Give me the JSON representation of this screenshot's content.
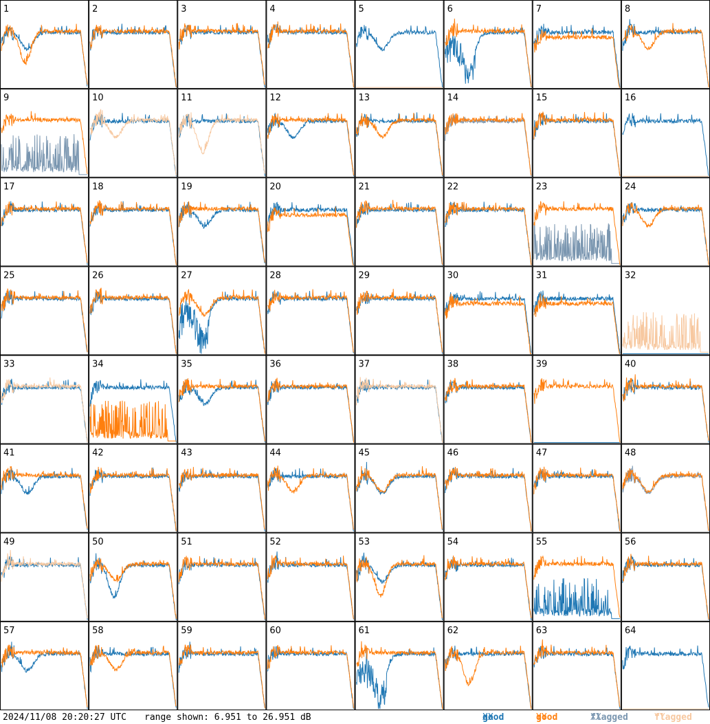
{
  "footer": {
    "timestamp": "2024/11/08 20:20:27 UTC",
    "range_text": "range shown: 6.951 to 26.951 dB",
    "legend": [
      {
        "word": "good",
        "pol": "XX",
        "color": "#1f77b4"
      },
      {
        "word": "good",
        "pol": "YY",
        "color": "#ff7f0e"
      },
      {
        "word": "flagged",
        "pol": "XX",
        "color": "#7a96b0"
      },
      {
        "word": "flagged",
        "pol": "YY",
        "color": "#f7c8a0"
      }
    ]
  },
  "chart_data": {
    "type": "line",
    "title": "",
    "xlabel": "",
    "ylabel": "",
    "ylim": [
      6.951,
      26.951
    ],
    "rows": 8,
    "cols": 8,
    "colors": {
      "good_xx": "#1f77b4",
      "good_yy": "#ff7f0e",
      "flagged_xx": "#7a96b0",
      "flagged_yy": "#f7c8a0"
    },
    "panels": [
      {
        "label": "1",
        "xx": "dip",
        "yy": "deepdip",
        "xf": false,
        "yf": false
      },
      {
        "label": "2",
        "xx": "flat",
        "yy": "flat",
        "xf": false,
        "yf": false
      },
      {
        "label": "3",
        "xx": "flat",
        "yy": "flat",
        "xf": false,
        "yf": false
      },
      {
        "label": "4",
        "xx": "flat",
        "yy": "flat",
        "xf": false,
        "yf": false
      },
      {
        "label": "5",
        "xx": "dip",
        "yy": "dead",
        "xf": false,
        "yf": true
      },
      {
        "label": "6",
        "xx": "noisydip",
        "yy": "flat",
        "xf": false,
        "yf": false
      },
      {
        "label": "7",
        "xx": "flat",
        "yy": "low",
        "xf": false,
        "yf": false
      },
      {
        "label": "8",
        "xx": "flat",
        "yy": "dip",
        "xf": false,
        "yf": false
      },
      {
        "label": "9",
        "xx": "spiky",
        "yy": "flat",
        "xf": true,
        "yf": false
      },
      {
        "label": "10",
        "xx": "flat",
        "yy": "dip",
        "xf": false,
        "yf": true
      },
      {
        "label": "11",
        "xx": "flat",
        "yy": "deepdip",
        "xf": false,
        "yf": true
      },
      {
        "label": "12",
        "xx": "dip",
        "yy": "flat",
        "xf": false,
        "yf": false
      },
      {
        "label": "13",
        "xx": "flat",
        "yy": "dip",
        "xf": false,
        "yf": false
      },
      {
        "label": "14",
        "xx": "flat",
        "yy": "flat",
        "xf": true,
        "yf": false
      },
      {
        "label": "15",
        "xx": "flat",
        "yy": "flat",
        "xf": false,
        "yf": false
      },
      {
        "label": "16",
        "xx": "flat",
        "yy": "dead",
        "xf": false,
        "yf": true
      },
      {
        "label": "17",
        "xx": "flat",
        "yy": "flat",
        "xf": false,
        "yf": false
      },
      {
        "label": "18",
        "xx": "flat",
        "yy": "flat",
        "xf": false,
        "yf": false
      },
      {
        "label": "19",
        "xx": "dip",
        "yy": "flat",
        "xf": false,
        "yf": false
      },
      {
        "label": "20",
        "xx": "flat",
        "yy": "low",
        "xf": false,
        "yf": false
      },
      {
        "label": "21",
        "xx": "flat",
        "yy": "flat",
        "xf": false,
        "yf": false
      },
      {
        "label": "22",
        "xx": "flat",
        "yy": "flat",
        "xf": false,
        "yf": false
      },
      {
        "label": "23",
        "xx": "spiky",
        "yy": "flat",
        "xf": true,
        "yf": false
      },
      {
        "label": "24",
        "xx": "flat",
        "yy": "dip",
        "xf": false,
        "yf": false
      },
      {
        "label": "25",
        "xx": "flat",
        "yy": "flat",
        "xf": false,
        "yf": false
      },
      {
        "label": "26",
        "xx": "flat",
        "yy": "flat",
        "xf": false,
        "yf": false
      },
      {
        "label": "27",
        "xx": "noisydip",
        "yy": "dip",
        "xf": false,
        "yf": false
      },
      {
        "label": "28",
        "xx": "flat",
        "yy": "flat",
        "xf": false,
        "yf": false
      },
      {
        "label": "29",
        "xx": "flat",
        "yy": "flat",
        "xf": false,
        "yf": false
      },
      {
        "label": "30",
        "xx": "flat",
        "yy": "low",
        "xf": false,
        "yf": false
      },
      {
        "label": "31",
        "xx": "flat",
        "yy": "low",
        "xf": false,
        "yf": false
      },
      {
        "label": "32",
        "xx": "dead",
        "yy": "spiky",
        "xf": false,
        "yf": true
      },
      {
        "label": "33",
        "xx": "flat",
        "yy": "flat",
        "xf": false,
        "yf": true
      },
      {
        "label": "34",
        "xx": "flat",
        "yy": "spiky",
        "xf": false,
        "yf": false
      },
      {
        "label": "35",
        "xx": "dip",
        "yy": "flat",
        "xf": false,
        "yf": false
      },
      {
        "label": "36",
        "xx": "flat",
        "yy": "flat",
        "xf": false,
        "yf": false
      },
      {
        "label": "37",
        "xx": "flat",
        "yy": "flat",
        "xf": false,
        "yf": true
      },
      {
        "label": "38",
        "xx": "flat",
        "yy": "flat",
        "xf": false,
        "yf": false
      },
      {
        "label": "39",
        "xx": "dead",
        "yy": "flat",
        "xf": false,
        "yf": false
      },
      {
        "label": "40",
        "xx": "flat",
        "yy": "flat",
        "xf": false,
        "yf": false
      },
      {
        "label": "41",
        "xx": "dip",
        "yy": "flat",
        "xf": false,
        "yf": false
      },
      {
        "label": "42",
        "xx": "flat",
        "yy": "flat",
        "xf": false,
        "yf": false
      },
      {
        "label": "43",
        "xx": "flat",
        "yy": "flat",
        "xf": false,
        "yf": false
      },
      {
        "label": "44",
        "xx": "flat",
        "yy": "dip",
        "xf": false,
        "yf": false
      },
      {
        "label": "45",
        "xx": "dip",
        "yy": "dip",
        "xf": false,
        "yf": false
      },
      {
        "label": "46",
        "xx": "flat",
        "yy": "flat",
        "xf": false,
        "yf": false
      },
      {
        "label": "47",
        "xx": "flat",
        "yy": "flat",
        "xf": false,
        "yf": false
      },
      {
        "label": "48",
        "xx": "dip",
        "yy": "dip",
        "xf": true,
        "yf": false
      },
      {
        "label": "49",
        "xx": "flat",
        "yy": "flat",
        "xf": false,
        "yf": true
      },
      {
        "label": "50",
        "xx": "deepdip",
        "yy": "dip",
        "xf": false,
        "yf": false
      },
      {
        "label": "51",
        "xx": "flat",
        "yy": "flat",
        "xf": false,
        "yf": false
      },
      {
        "label": "52",
        "xx": "flat",
        "yy": "flat",
        "xf": false,
        "yf": false
      },
      {
        "label": "53",
        "xx": "dip",
        "yy": "deepdip",
        "xf": false,
        "yf": false
      },
      {
        "label": "54",
        "xx": "flat",
        "yy": "flat",
        "xf": false,
        "yf": false
      },
      {
        "label": "55",
        "xx": "spiky",
        "yy": "flat",
        "xf": false,
        "yf": false
      },
      {
        "label": "56",
        "xx": "flat",
        "yy": "flat",
        "xf": false,
        "yf": false
      },
      {
        "label": "57",
        "xx": "dip",
        "yy": "flat",
        "xf": false,
        "yf": false
      },
      {
        "label": "58",
        "xx": "flat",
        "yy": "dip",
        "xf": false,
        "yf": false
      },
      {
        "label": "59",
        "xx": "flat",
        "yy": "flat",
        "xf": false,
        "yf": false
      },
      {
        "label": "60",
        "xx": "flat",
        "yy": "flat",
        "xf": false,
        "yf": false
      },
      {
        "label": "61",
        "xx": "noisydip",
        "yy": "flat",
        "xf": false,
        "yf": false
      },
      {
        "label": "62",
        "xx": "flat",
        "yy": "deepdip",
        "xf": false,
        "yf": false
      },
      {
        "label": "63",
        "xx": "flat",
        "yy": "flat",
        "xf": false,
        "yf": false
      },
      {
        "label": "64",
        "xx": "flat",
        "yy": "dead",
        "xf": false,
        "yf": true
      }
    ]
  }
}
